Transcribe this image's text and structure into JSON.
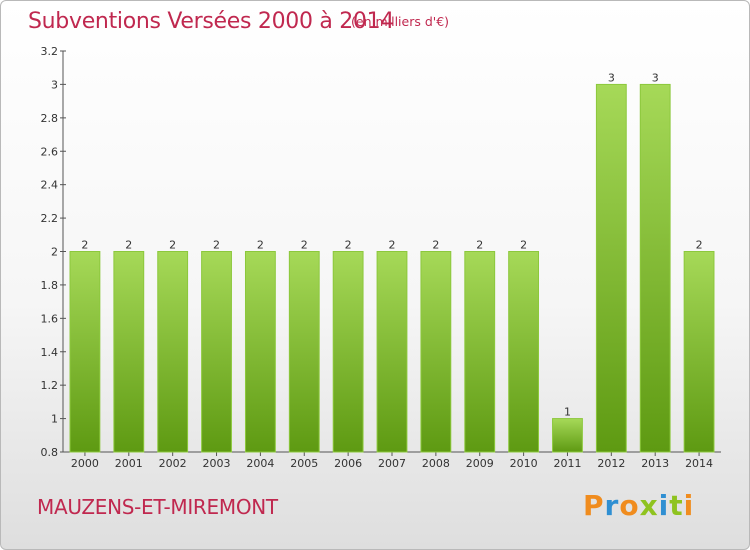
{
  "title": "Subventions Versées 2000 à 2014",
  "subtitle": "(en milliers d'€)",
  "commune": "MAUZENS-ET-MIREMONT",
  "logo": {
    "text": "Proxiti",
    "letters": [
      "P",
      "r",
      "o",
      "x",
      "i",
      "t",
      "i"
    ],
    "colors": [
      "#f08c1e",
      "#2f8fd2",
      "#f08c1e",
      "#8fc31f",
      "#2f8fd2",
      "#8fc31f",
      "#f08c1e"
    ]
  },
  "colors": {
    "accent": "#c0284f",
    "bar_top": "#a6d958",
    "bar_bottom": "#5e9a12"
  },
  "chart_data": {
    "type": "bar",
    "title": "Subventions Versées 2000 à 2014",
    "subtitle": "(en milliers d'€)",
    "xlabel": "",
    "ylabel": "",
    "categories": [
      "2000",
      "2001",
      "2002",
      "2003",
      "2004",
      "2005",
      "2006",
      "2007",
      "2008",
      "2009",
      "2010",
      "2011",
      "2012",
      "2013",
      "2014"
    ],
    "values": [
      2,
      2,
      2,
      2,
      2,
      2,
      2,
      2,
      2,
      2,
      2,
      1,
      3,
      3,
      2
    ],
    "data_labels": [
      "2",
      "2",
      "2",
      "2",
      "2",
      "2",
      "2",
      "2",
      "2",
      "2",
      "2",
      "1",
      "3",
      "3",
      "2"
    ],
    "ylim": [
      0.8,
      3.2
    ],
    "yticks": [
      0.8,
      1,
      1.2,
      1.4,
      1.6,
      1.8,
      2,
      2.2,
      2.4,
      2.6,
      2.8,
      3,
      3.2
    ],
    "ytick_labels": [
      "0.8",
      "1",
      "1.2",
      "1.4",
      "1.6",
      "1.8",
      "2",
      "2.2",
      "2.4",
      "2.6",
      "2.8",
      "3",
      "3.2"
    ],
    "grid": false,
    "legend": "none"
  }
}
